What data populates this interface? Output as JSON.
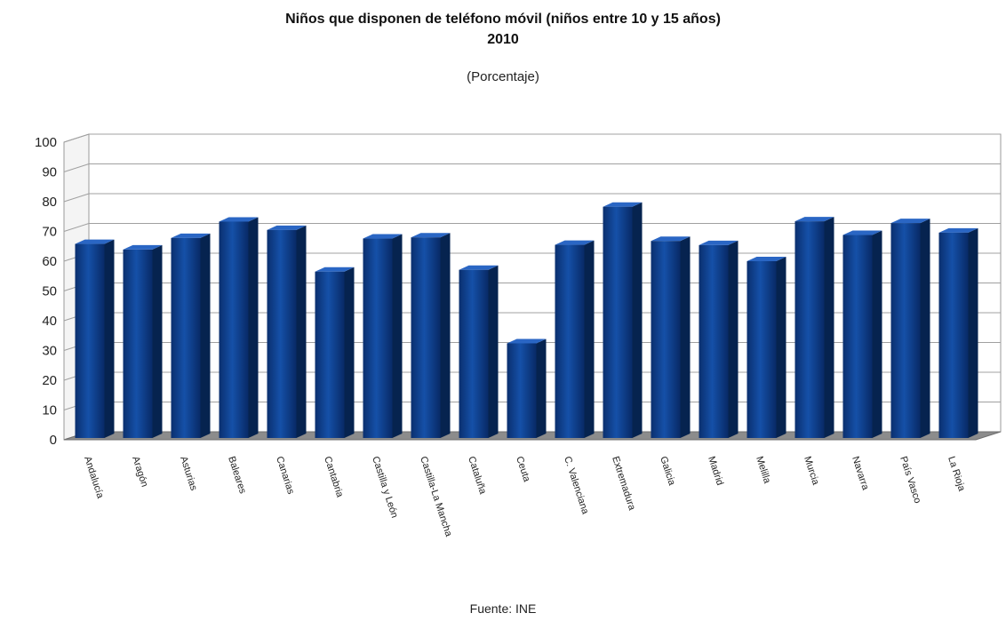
{
  "chart_data": {
    "type": "bar",
    "title": "Niños que disponen de teléfono móvil (niños entre 10 y 15 años)",
    "title_line2": "2010",
    "subtitle": "(Porcentaje)",
    "source": "Fuente: INE",
    "ylim": [
      0,
      100
    ],
    "yticks": [
      0,
      10,
      20,
      30,
      40,
      50,
      60,
      70,
      80,
      90,
      100
    ],
    "grid": true,
    "bar_color": "#0b3d8c",
    "categories": [
      "Andalucía",
      "Aragón",
      "Asturias",
      "Baleares",
      "Canarias",
      "Cantabria",
      "Castilla y León",
      "Castilla-La Mancha",
      "Cataluña",
      "Ceuta",
      "C. Valenciana",
      "Extremadura",
      "Galicia",
      "Madrid",
      "Melilla",
      "Murcia",
      "Navarra",
      "País Vasco",
      "La Rioja"
    ],
    "values": [
      65.8,
      63.9,
      67.8,
      73.3,
      70.5,
      56.5,
      67.6,
      68.0,
      57.1,
      32.4,
      65.5,
      78.3,
      66.8,
      65.4,
      60.0,
      73.4,
      68.8,
      72.8,
      69.6
    ]
  }
}
